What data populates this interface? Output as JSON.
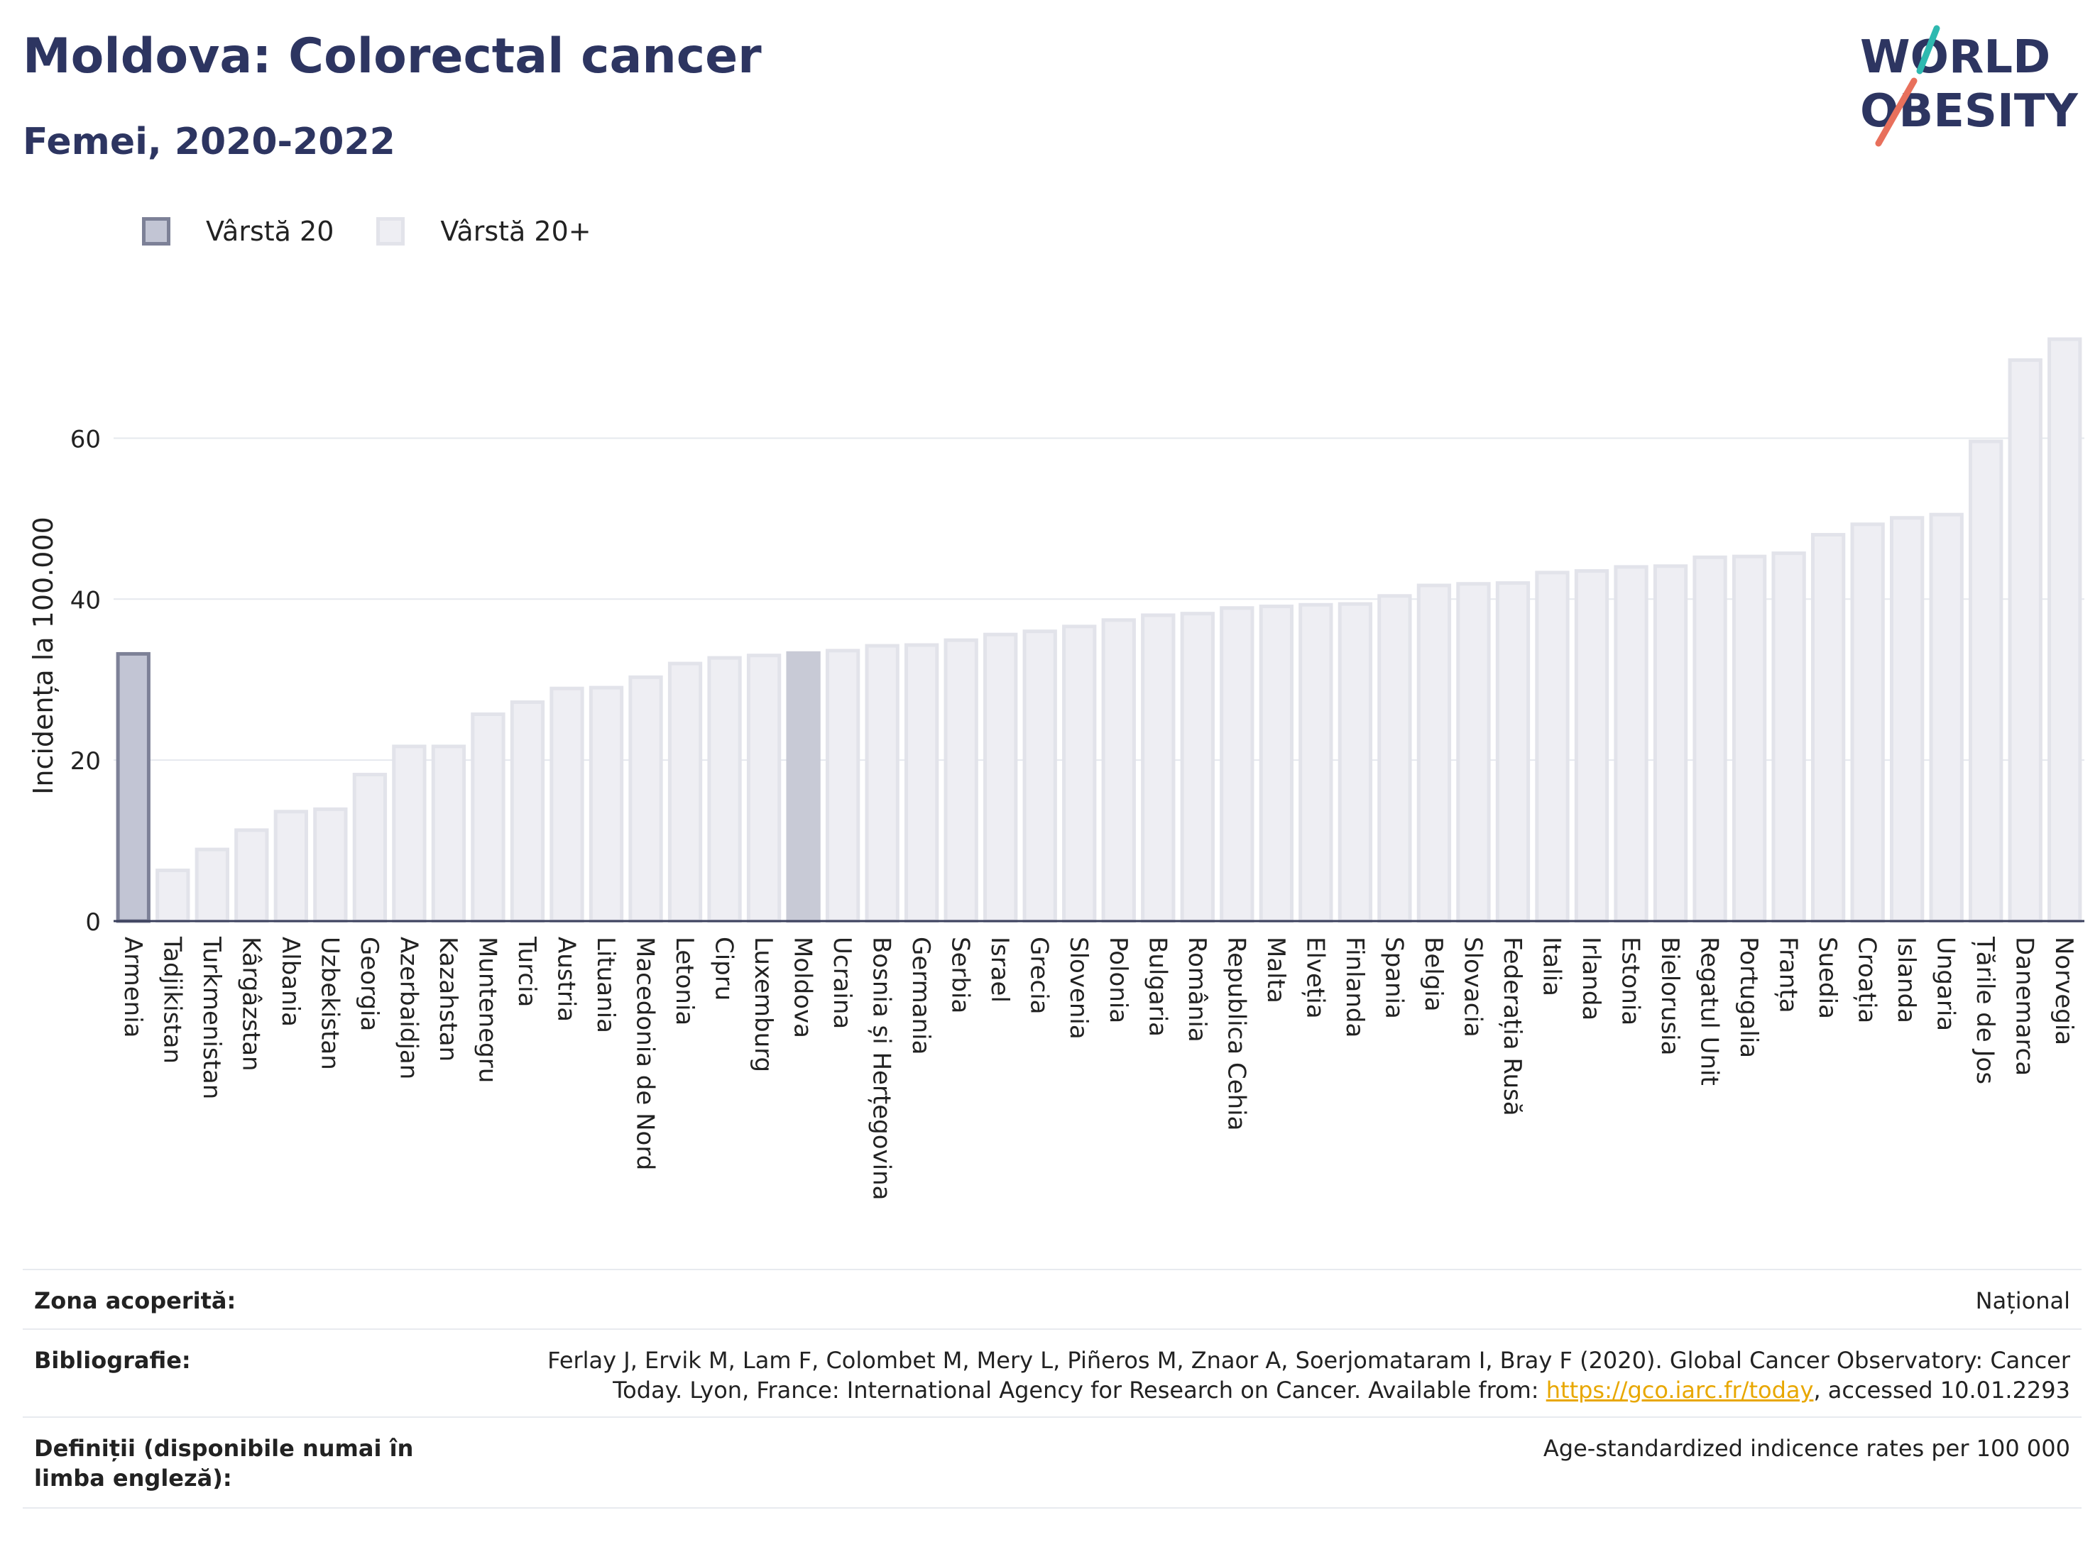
{
  "header": {
    "title": "Moldova: Colorectal cancer",
    "subtitle": "Femei, 2020-2022"
  },
  "logo": {
    "line1": "WORLD",
    "line2": "OBESITY"
  },
  "legend": [
    {
      "label": "Vârstă 20",
      "color": "#c2c5d4",
      "border": "#7d8197"
    },
    {
      "label": "Vârstă 20+",
      "color": "#eeeef3",
      "border": "#e2e3ea"
    }
  ],
  "chart_data": {
    "type": "bar",
    "ylabel": "Incidența la 100.000",
    "ylim": [
      0,
      73
    ],
    "yticks": [
      0,
      20,
      40,
      60
    ],
    "grid": true,
    "legend_position": "top-left",
    "categories": [
      "Armenia",
      "Tadjikistan",
      "Turkmenistan",
      "Kârgâzstan",
      "Albania",
      "Uzbekistan",
      "Georgia",
      "Azerbaidjan",
      "Kazahstan",
      "Muntenegru",
      "Turcia",
      "Austria",
      "Lituania",
      "Macedonia de Nord",
      "Letonia",
      "Cipru",
      "Luxemburg",
      "Moldova",
      "Ucraina",
      "Bosnia și Herțegovina",
      "Germania",
      "Serbia",
      "Israel",
      "Grecia",
      "Slovenia",
      "Polonia",
      "Bulgaria",
      "România",
      "Republica Cehia",
      "Malta",
      "Elveția",
      "Finlanda",
      "Spania",
      "Belgia",
      "Slovacia",
      "Federația Rusă",
      "Italia",
      "Irlanda",
      "Estonia",
      "Bielorusia",
      "Regatul Unit",
      "Portugalia",
      "Franța",
      "Suedia",
      "Croația",
      "Islanda",
      "Ungaria",
      "Țările de Jos",
      "Danemarca",
      "Norvegia"
    ],
    "values": [
      33.2,
      6.3,
      8.9,
      11.3,
      13.6,
      13.9,
      18.2,
      21.7,
      21.7,
      25.7,
      27.2,
      28.9,
      29.0,
      30.3,
      32.0,
      32.7,
      33.0,
      33.3,
      33.6,
      34.2,
      34.3,
      34.9,
      35.6,
      36.0,
      36.6,
      37.4,
      38.0,
      38.2,
      38.9,
      39.1,
      39.3,
      39.4,
      40.4,
      41.7,
      41.9,
      42.0,
      43.3,
      43.5,
      44.0,
      44.1,
      45.2,
      45.3,
      45.7,
      48.0,
      49.3,
      50.1,
      50.5,
      59.6,
      69.7,
      72.3
    ],
    "series_styles": {
      "highlight": {
        "categories": [
          "Armenia"
        ],
        "fill": "#c2c5d4",
        "stroke": "#7d8197"
      },
      "focus": {
        "categories": [
          "Moldova"
        ],
        "fill": "#c8cad6",
        "stroke": "#c8cad6"
      },
      "default": {
        "fill": "#eeeef3",
        "stroke": "#e2e3ea"
      }
    }
  },
  "metadata": {
    "coverage_label": "Zona acoperită:",
    "coverage_value": "Național",
    "bibliography_label": "Bibliografie:",
    "bibliography_text_1": "Ferlay J, Ervik M, Lam F, Colombet M, Mery L, Piñeros M, Znaor A, Soerjomataram I, Bray F (2020). Global Cancer Observatory: Cancer",
    "bibliography_text_2": "Today. Lyon, France: International Agency for Research on Cancer. Available from: ",
    "bibliography_link": "https://gco.iarc.fr/today",
    "bibliography_text_3": ", accessed 10.01.2293",
    "definitions_label": "Definiții (disponibile numai în limba engleză):",
    "definitions_value": "Age-standardized indicence rates per 100 000"
  }
}
